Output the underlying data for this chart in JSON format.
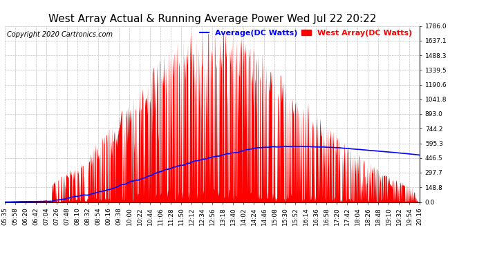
{
  "title": "West Array Actual & Running Average Power Wed Jul 22 20:22",
  "copyright": "Copyright 2020 Cartronics.com",
  "legend_avg": "Average(DC Watts)",
  "legend_west": "West Array(DC Watts)",
  "avg_color": "blue",
  "west_color": "red",
  "bg_color": "#ffffff",
  "grid_color": "#b0b0b0",
  "ymin": 0.0,
  "ymax": 1786.0,
  "yticks": [
    0.0,
    148.8,
    297.7,
    446.5,
    595.3,
    744.2,
    893.0,
    1041.8,
    1190.6,
    1339.5,
    1488.3,
    1637.1,
    1786.0
  ],
  "x_labels": [
    "05:35",
    "05:58",
    "06:20",
    "06:42",
    "07:04",
    "07:26",
    "07:48",
    "08:10",
    "08:32",
    "08:54",
    "09:16",
    "09:38",
    "10:00",
    "10:22",
    "10:44",
    "11:06",
    "11:28",
    "11:50",
    "12:12",
    "12:34",
    "12:56",
    "13:18",
    "13:40",
    "14:02",
    "14:24",
    "14:46",
    "15:08",
    "15:30",
    "15:52",
    "16:14",
    "16:36",
    "16:58",
    "17:20",
    "17:42",
    "18:04",
    "18:26",
    "18:48",
    "19:10",
    "19:32",
    "19:54",
    "20:16"
  ],
  "title_fontsize": 11,
  "copyright_fontsize": 7,
  "tick_fontsize": 6.5,
  "legend_fontsize": 8
}
